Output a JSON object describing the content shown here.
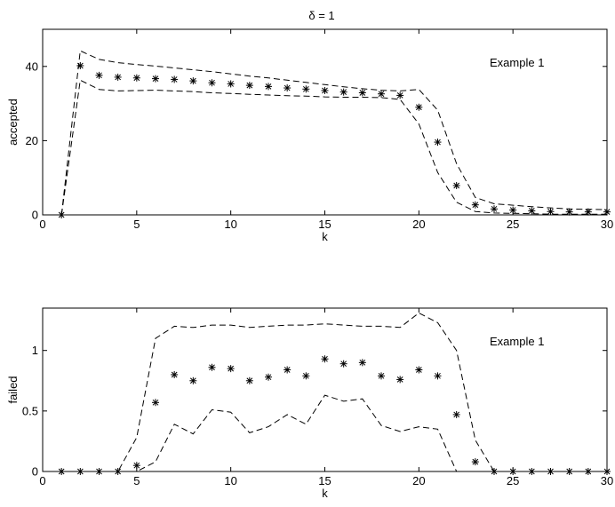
{
  "figure_title": "δ = 1",
  "chart_data": [
    {
      "type": "scatter",
      "title": "δ = 1",
      "annotation": "Example 1",
      "xlabel": "k",
      "ylabel": "accepted",
      "xlim": [
        0,
        30
      ],
      "ylim": [
        0,
        50
      ],
      "xticks": [
        0,
        5,
        10,
        15,
        20,
        25,
        30
      ],
      "yticks": [
        0,
        20,
        40
      ],
      "grid": false,
      "series": [
        {
          "style": "markers",
          "marker": "asterisk",
          "x": [
            1,
            2,
            3,
            4,
            5,
            6,
            7,
            8,
            9,
            10,
            11,
            12,
            13,
            14,
            15,
            16,
            17,
            18,
            19,
            20,
            21,
            22,
            23,
            24,
            25,
            26,
            27,
            28,
            29,
            30
          ],
          "y": [
            0,
            40.2,
            37.6,
            37.1,
            36.9,
            36.7,
            36.5,
            36.1,
            35.6,
            35.3,
            34.9,
            34.6,
            34.2,
            33.9,
            33.5,
            33.1,
            32.9,
            32.6,
            32.2,
            29.0,
            19.6,
            7.9,
            2.7,
            1.6,
            1.3,
            1.1,
            0.9,
            0.8,
            0.8,
            0.8
          ]
        },
        {
          "style": "dashed",
          "x": [
            1,
            2,
            3,
            4,
            5,
            6,
            7,
            8,
            9,
            10,
            11,
            12,
            13,
            14,
            15,
            16,
            17,
            18,
            19,
            20,
            21,
            22,
            23,
            24,
            25,
            26,
            27,
            28,
            29,
            30
          ],
          "y": [
            0,
            44.2,
            41.9,
            41.0,
            40.5,
            40.1,
            39.6,
            39.1,
            38.6,
            38.0,
            37.4,
            36.9,
            36.3,
            35.7,
            35.1,
            34.5,
            34.0,
            33.6,
            33.4,
            33.8,
            28.2,
            13.8,
            4.7,
            3.0,
            2.6,
            2.2,
            1.9,
            1.6,
            1.5,
            1.4
          ]
        },
        {
          "style": "dashed",
          "x": [
            1,
            2,
            3,
            4,
            5,
            6,
            7,
            8,
            9,
            10,
            11,
            12,
            13,
            14,
            15,
            16,
            17,
            18,
            19,
            20,
            21,
            22,
            23,
            24,
            25,
            26,
            27,
            28,
            29,
            30
          ],
          "y": [
            0,
            36.3,
            33.8,
            33.4,
            33.5,
            33.6,
            33.4,
            33.2,
            32.9,
            32.7,
            32.5,
            32.3,
            32.1,
            32.0,
            31.8,
            31.7,
            31.7,
            31.6,
            31.1,
            24.5,
            11.4,
            3.4,
            0.9,
            0.5,
            0.4,
            0.3,
            0.2,
            0.2,
            0.2,
            0.2
          ]
        }
      ]
    },
    {
      "type": "scatter",
      "annotation": "Example 1",
      "xlabel": "k",
      "ylabel": "failed",
      "xlim": [
        0,
        30
      ],
      "ylim": [
        0,
        1.35
      ],
      "xticks": [
        0,
        5,
        10,
        15,
        20,
        25,
        30
      ],
      "yticks": [
        0,
        0.5,
        1
      ],
      "grid": false,
      "series": [
        {
          "style": "markers",
          "marker": "asterisk",
          "x": [
            1,
            2,
            3,
            4,
            5,
            6,
            7,
            8,
            9,
            10,
            11,
            12,
            13,
            14,
            15,
            16,
            17,
            18,
            19,
            20,
            21,
            22,
            23,
            24,
            25,
            26,
            27,
            28,
            29,
            30
          ],
          "y": [
            0,
            0,
            0,
            0,
            0.05,
            0.57,
            0.8,
            0.75,
            0.86,
            0.85,
            0.75,
            0.78,
            0.84,
            0.79,
            0.93,
            0.89,
            0.9,
            0.79,
            0.76,
            0.84,
            0.79,
            0.47,
            0.08,
            0,
            0,
            0,
            0,
            0,
            0,
            0
          ]
        },
        {
          "style": "dashed",
          "x": [
            1,
            2,
            3,
            4,
            5,
            6,
            7,
            8,
            9,
            10,
            11,
            12,
            13,
            14,
            15,
            16,
            17,
            18,
            19,
            20,
            21,
            22,
            23,
            24,
            25,
            26,
            27,
            28,
            29,
            30
          ],
          "y": [
            0,
            0,
            0,
            0,
            0.28,
            1.1,
            1.2,
            1.19,
            1.21,
            1.21,
            1.19,
            1.2,
            1.21,
            1.21,
            1.22,
            1.21,
            1.2,
            1.2,
            1.19,
            1.31,
            1.23,
            1.0,
            0.26,
            0,
            0,
            0,
            0,
            0,
            0,
            0
          ]
        },
        {
          "style": "dashed",
          "x": [
            1,
            2,
            3,
            4,
            5,
            6,
            7,
            8,
            9,
            10,
            11,
            12,
            13,
            14,
            15,
            16,
            17,
            18,
            19,
            20,
            21,
            22,
            23,
            24,
            25,
            26,
            27,
            28,
            29,
            30
          ],
          "y": [
            0,
            0,
            0,
            0,
            0,
            0.08,
            0.39,
            0.31,
            0.51,
            0.49,
            0.32,
            0.37,
            0.47,
            0.39,
            0.63,
            0.58,
            0.6,
            0.38,
            0.33,
            0.37,
            0.35,
            0,
            0,
            0,
            0,
            0,
            0,
            0,
            0,
            0
          ]
        }
      ]
    }
  ]
}
